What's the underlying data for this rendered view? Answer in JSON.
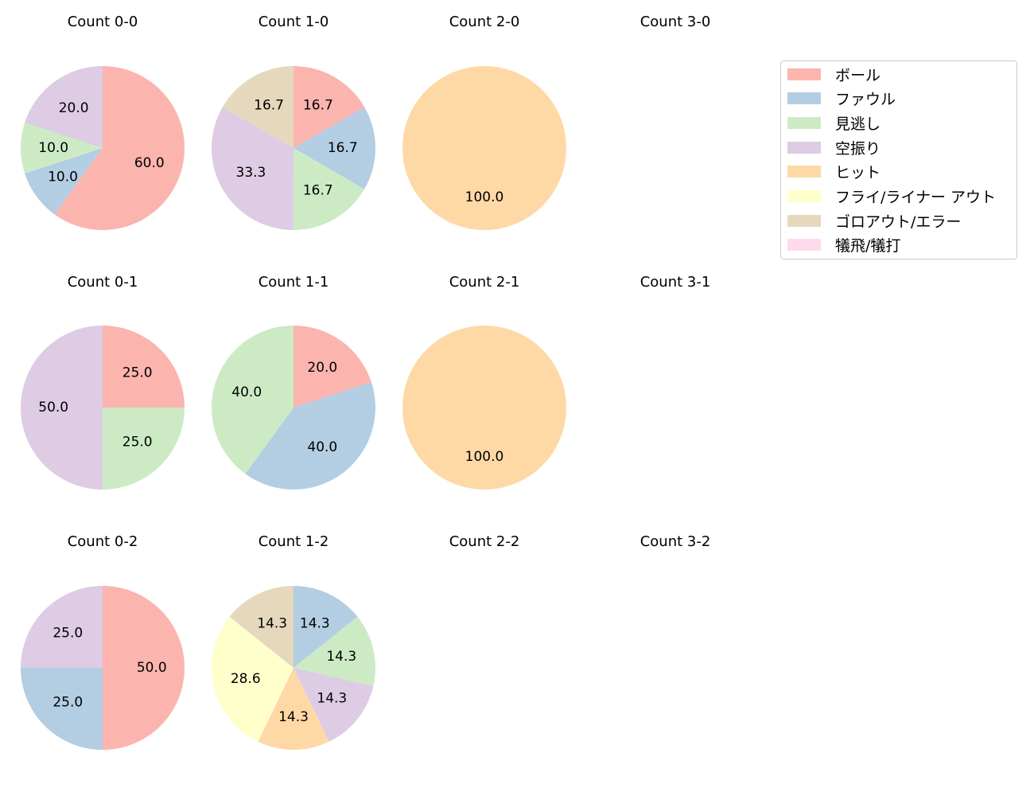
{
  "chart_data": {
    "type": "pie",
    "title": "",
    "legend": {
      "position": "upper right",
      "entries": [
        "ボール",
        "ファウル",
        "見逃し",
        "空振り",
        "ヒット",
        "フライ/ライナー アウト",
        "ゴロアウト/エラー",
        "犠飛/犠打"
      ],
      "colors": [
        "#fbb4ae",
        "#b3cde3",
        "#ccebc5",
        "#decbe4",
        "#fed9a6",
        "#ffffcc",
        "#e5d8bd",
        "#fddaec"
      ]
    },
    "subplots": [
      {
        "title": "Count 0-0",
        "row": 0,
        "col": 0,
        "values": {
          "ボール": 60.0,
          "ファウル": 10.0,
          "見逃し": 10.0,
          "空振り": 20.0
        }
      },
      {
        "title": "Count 1-0",
        "row": 0,
        "col": 1,
        "values": {
          "ボール": 16.7,
          "ファウル": 16.7,
          "見逃し": 16.7,
          "空振り": 33.3,
          "ゴロアウト/エラー": 16.7
        }
      },
      {
        "title": "Count 2-0",
        "row": 0,
        "col": 2,
        "values": {
          "ヒット": 100.0
        }
      },
      {
        "title": "Count 3-0",
        "row": 0,
        "col": 3,
        "values": {}
      },
      {
        "title": "Count 0-1",
        "row": 1,
        "col": 0,
        "values": {
          "ボール": 25.0,
          "見逃し": 25.0,
          "空振り": 50.0
        }
      },
      {
        "title": "Count 1-1",
        "row": 1,
        "col": 1,
        "values": {
          "ボール": 20.0,
          "ファウル": 40.0,
          "見逃し": 40.0
        }
      },
      {
        "title": "Count 2-1",
        "row": 1,
        "col": 2,
        "values": {
          "ヒット": 100.0
        }
      },
      {
        "title": "Count 3-1",
        "row": 1,
        "col": 3,
        "values": {}
      },
      {
        "title": "Count 0-2",
        "row": 2,
        "col": 0,
        "values": {
          "ボール": 50.0,
          "ファウル": 25.0,
          "空振り": 25.0
        }
      },
      {
        "title": "Count 1-2",
        "row": 2,
        "col": 1,
        "values": {
          "ファウル": 14.3,
          "見逃し": 14.3,
          "空振り": 14.3,
          "ヒット": 14.3,
          "フライ/ライナー アウト": 28.6,
          "ゴロアウト/エラー": 14.3
        }
      },
      {
        "title": "Count 2-2",
        "row": 2,
        "col": 2,
        "values": {}
      },
      {
        "title": "Count 3-2",
        "row": 2,
        "col": 3,
        "values": {}
      }
    ]
  },
  "titles": [
    "Count 0-0",
    "Count 1-0",
    "Count 2-0",
    "Count 3-0",
    "Count 0-1",
    "Count 1-1",
    "Count 2-1",
    "Count 3-1",
    "Count 0-2",
    "Count 1-2",
    "Count 2-2",
    "Count 3-2"
  ]
}
